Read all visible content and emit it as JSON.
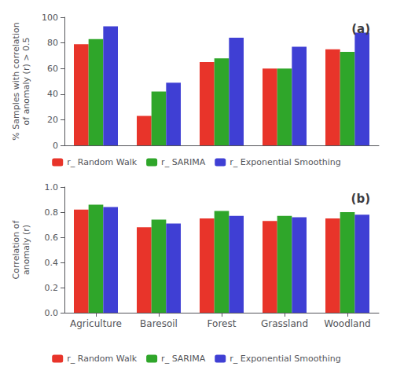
{
  "chart_data": [
    {
      "type": "bar",
      "title": "(a)",
      "ylabel": "% Samples with correlation\nof anomaly (r) > 0.5",
      "categories": [
        "Agriculture",
        "Baresoil",
        "Forest",
        "Grassland",
        "Woodland"
      ],
      "series": [
        {
          "name": "r_ Random Walk",
          "color": "#e8342a",
          "values": [
            79,
            23,
            65,
            60,
            75
          ]
        },
        {
          "name": "r_ SARIMA",
          "color": "#2fa62a",
          "values": [
            83,
            42,
            68,
            60,
            73
          ]
        },
        {
          "name": "r_ Exponential Smoothing",
          "color": "#3f3fd4",
          "values": [
            93,
            49,
            84,
            77,
            88
          ]
        }
      ],
      "ylim": [
        0,
        100
      ],
      "yticks": [
        0,
        20,
        40,
        60,
        80,
        100
      ],
      "grid": false,
      "legend": "bottom",
      "tick_labels": "y"
    },
    {
      "type": "bar",
      "title": "(b)",
      "ylabel": "Correlation of\nanomaly (r)",
      "categories": [
        "Agriculture",
        "Baresoil",
        "Forest",
        "Grassland",
        "Woodland"
      ],
      "series": [
        {
          "name": "r_ Random Walk",
          "color": "#e8342a",
          "values": [
            0.82,
            0.68,
            0.75,
            0.73,
            0.75
          ]
        },
        {
          "name": "r_ SARIMA",
          "color": "#2fa62a",
          "values": [
            0.86,
            0.74,
            0.81,
            0.77,
            0.8
          ]
        },
        {
          "name": "r_ Exponential Smoothing",
          "color": "#3f3fd4",
          "values": [
            0.84,
            0.71,
            0.77,
            0.76,
            0.78
          ]
        }
      ],
      "ylim": [
        0,
        1
      ],
      "yticks": [
        {
          "value": 0,
          "label": "0.0"
        },
        0.2,
        0.4,
        0.6,
        0.8,
        {
          "value": 1,
          "label": "1.0"
        }
      ],
      "grid": false,
      "legend": "bottom"
    }
  ]
}
